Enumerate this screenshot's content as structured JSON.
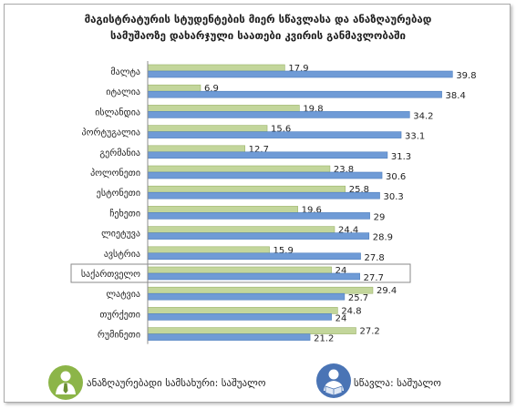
{
  "title_line1": "მაგისტრატურის სტუდენტების მიერ სწავლასა და ანაზღაურებად",
  "title_line2": "სამუშაოზე დახარჯული საათები კვირის განმავლობაში",
  "legend": {
    "work_label": "ანაზღაურებადი სამსახური: საშუალო",
    "study_label": "სწავლა: საშუალო",
    "work_icon": "person-tie-icon",
    "study_icon": "student-reading-icon"
  },
  "chart_data": {
    "type": "bar",
    "orientation": "horizontal",
    "title": "მაგისტრატურის სტუდენტების მიერ სწავლასა და ანაზღაურებად სამუშაოზე დახარჯული საათები კვირის განმავლობაში",
    "categories": [
      "მალტა",
      "იტალია",
      "ისლანდია",
      "პორტუგალია",
      "გერმანია",
      "პოლონეთი",
      "ესტონეთი",
      "ჩეხეთი",
      "ლიეტუვა",
      "ავსტრია",
      "საქართველო",
      "ლატვია",
      "თურქეთი",
      "რუმინეთი"
    ],
    "highlighted_category": "საქართველო",
    "series": [
      {
        "name": "ანაზღაურებადი სამსახური: საშუალო",
        "color": "#c3d69b",
        "values": [
          17.9,
          6.9,
          19.8,
          15.6,
          12.7,
          23.8,
          25.8,
          19.6,
          24.4,
          15.9,
          24,
          29.4,
          24.8,
          27.2
        ]
      },
      {
        "name": "სწავლა: საშუალო",
        "color": "#6f9bd6",
        "values": [
          39.8,
          38.4,
          34.2,
          33.1,
          31.3,
          30.6,
          30.3,
          29,
          28.9,
          27.8,
          27.7,
          25.7,
          24,
          21.2
        ]
      }
    ],
    "xlim": [
      0,
      42
    ],
    "grid": false,
    "legend_position": "bottom"
  }
}
